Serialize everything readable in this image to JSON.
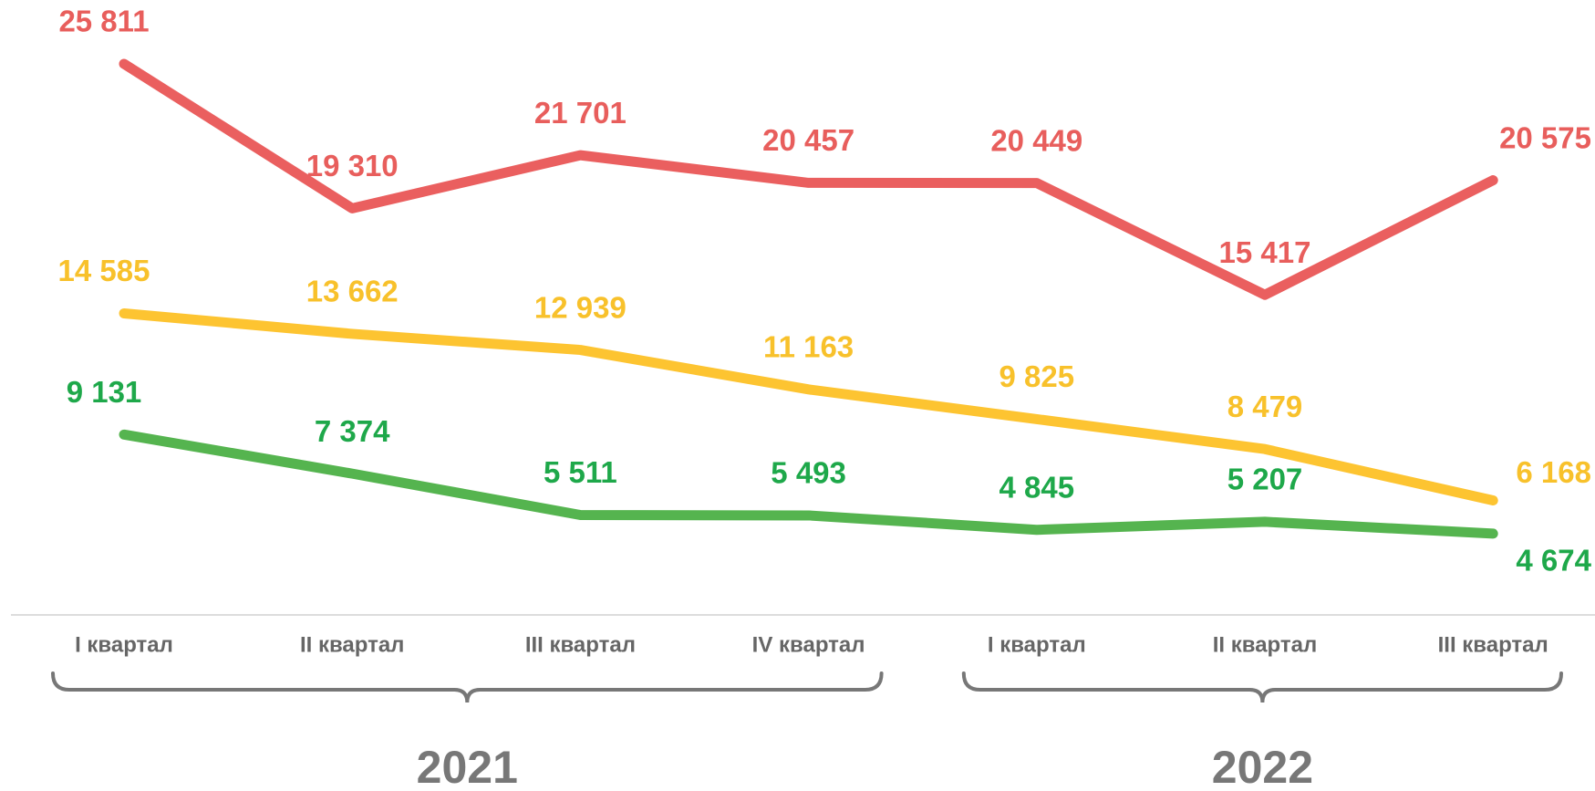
{
  "chart_data": {
    "type": "line",
    "categories": [
      "I квартал",
      "II квартал",
      "III квартал",
      "IV квартал",
      "I квартал",
      "II квартал",
      "III квартал"
    ],
    "groups": [
      {
        "label": "2021",
        "count": 4
      },
      {
        "label": "2022",
        "count": 3
      }
    ],
    "series": [
      {
        "color": "#ea5f5f",
        "label_color": "#e85e5c",
        "values": [
          25811,
          19310,
          21701,
          20457,
          20449,
          15417,
          20575
        ],
        "value_labels": [
          "25 811",
          "19 310",
          "21 701",
          "20 457",
          "20 449",
          "15 417",
          "20 575"
        ]
      },
      {
        "color": "#fdc431",
        "label_color": "#f8c12b",
        "values": [
          14585,
          13662,
          12939,
          11163,
          9825,
          8479,
          6168
        ],
        "value_labels": [
          "14 585",
          "13 662",
          "12 939",
          "11 163",
          "9 825",
          "8 479",
          "6 168"
        ]
      },
      {
        "color": "#55b44f",
        "label_color": "#1ea84a",
        "values": [
          9131,
          7374,
          5511,
          5493,
          4845,
          5207,
          4674
        ],
        "value_labels": [
          "9 131",
          "7 374",
          "5 511",
          "5 493",
          "4 845",
          "5 207",
          "4 674"
        ]
      }
    ]
  }
}
